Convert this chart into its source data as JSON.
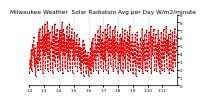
{
  "title": "Milwaukee Weather  Solar Radiation Avg per Day W/m2/minute",
  "y_values": [
    1.5,
    3.2,
    2.1,
    4.5,
    1.8,
    5.2,
    3.8,
    6.1,
    2.5,
    4.8,
    1.2,
    3.5,
    2.8,
    5.5,
    1.9,
    6.8,
    3.2,
    7.2,
    2.1,
    5.8,
    4.5,
    7.5,
    1.5,
    6.2,
    3.8,
    7.8,
    2.2,
    6.5,
    4.2,
    8.1,
    1.8,
    7.0,
    3.5,
    6.8,
    2.0,
    5.5,
    4.8,
    7.5,
    1.5,
    6.2,
    3.2,
    7.8,
    2.5,
    6.5,
    4.0,
    7.2,
    1.8,
    5.8,
    3.5,
    7.0,
    2.0,
    6.8,
    4.5,
    8.0,
    1.5,
    7.2,
    3.8,
    6.5,
    2.2,
    5.5,
    4.2,
    7.5,
    1.8,
    6.2,
    3.5,
    7.8,
    2.0,
    6.0,
    4.8,
    7.2,
    1.5,
    5.8,
    3.2,
    6.8,
    2.5,
    5.5,
    4.0,
    6.5,
    1.8,
    5.2,
    3.5,
    6.0,
    2.2,
    4.8,
    1.5,
    4.5,
    3.0,
    5.8,
    1.2,
    5.2,
    2.8,
    4.5,
    1.5,
    3.8,
    2.5,
    4.2,
    1.2,
    3.5,
    2.0,
    4.8,
    1.5,
    5.5,
    2.5,
    6.0,
    1.8,
    4.5,
    3.2,
    6.5,
    2.0,
    5.2,
    3.8,
    7.0,
    1.5,
    6.2,
    4.2,
    7.5,
    2.2,
    5.8,
    3.5,
    6.8,
    1.8,
    5.5,
    3.2,
    7.2,
    2.0,
    6.5,
    4.5,
    7.8,
    1.5,
    6.0,
    3.8,
    7.5,
    2.5,
    5.8,
    4.0,
    7.0,
    1.8,
    6.2,
    3.5,
    7.5,
    2.2,
    5.5,
    4.2,
    6.8,
    1.5,
    5.2,
    3.0,
    6.5,
    2.0,
    6.0,
    3.8,
    7.2,
    1.5,
    5.8,
    3.5,
    7.0,
    2.2,
    5.5,
    4.0,
    6.8,
    1.8,
    6.2,
    3.2,
    7.5,
    2.0,
    5.5,
    3.8,
    6.5,
    1.5,
    3.8,
    5.5,
    2.8,
    6.5,
    1.2,
    4.2,
    6.8,
    2.5,
    5.2,
    1.8,
    3.5,
    6.0,
    2.2,
    4.8,
    7.2,
    1.5,
    5.8,
    3.2,
    6.5,
    2.0,
    4.5,
    7.0,
    1.8,
    5.5,
    3.5,
    6.8,
    2.2,
    5.0,
    7.5,
    1.5,
    6.2,
    3.8,
    5.5,
    7.2,
    2.0,
    4.8,
    6.5,
    1.8,
    5.2,
    3.2,
    7.0,
    2.5,
    5.8,
    1.5,
    4.5,
    6.8,
    2.0,
    5.5,
    3.5,
    7.2,
    1.8,
    6.0,
    4.2,
    7.5,
    2.2,
    5.8,
    3.8,
    6.5,
    1.5,
    5.2,
    7.0,
    2.0,
    4.8,
    6.8,
    1.8,
    5.5,
    3.2,
    7.2,
    2.5,
    4.5,
    6.5
  ],
  "line_color": "#FF0000",
  "dot_color": "#000000",
  "grid_color": "#999999",
  "background_color": "#FFFFFF",
  "ylim": [
    0,
    9
  ],
  "yticks": [
    0,
    1,
    2,
    3,
    4,
    5,
    6,
    7,
    8,
    9
  ],
  "title_fontsize": 4.2,
  "tick_fontsize": 3.0,
  "vgrid_positions": [
    24,
    48,
    72,
    96,
    120,
    144,
    168,
    192
  ],
  "x_tick_positions": [
    0,
    24,
    48,
    72,
    96,
    120,
    144,
    168,
    192,
    216
  ],
  "x_tick_labels": [
    "1.2",
    "1.3",
    "1.4",
    "1.5",
    "1.6",
    "1.7",
    "1.8",
    "1.9",
    "1.10",
    "1.11"
  ]
}
